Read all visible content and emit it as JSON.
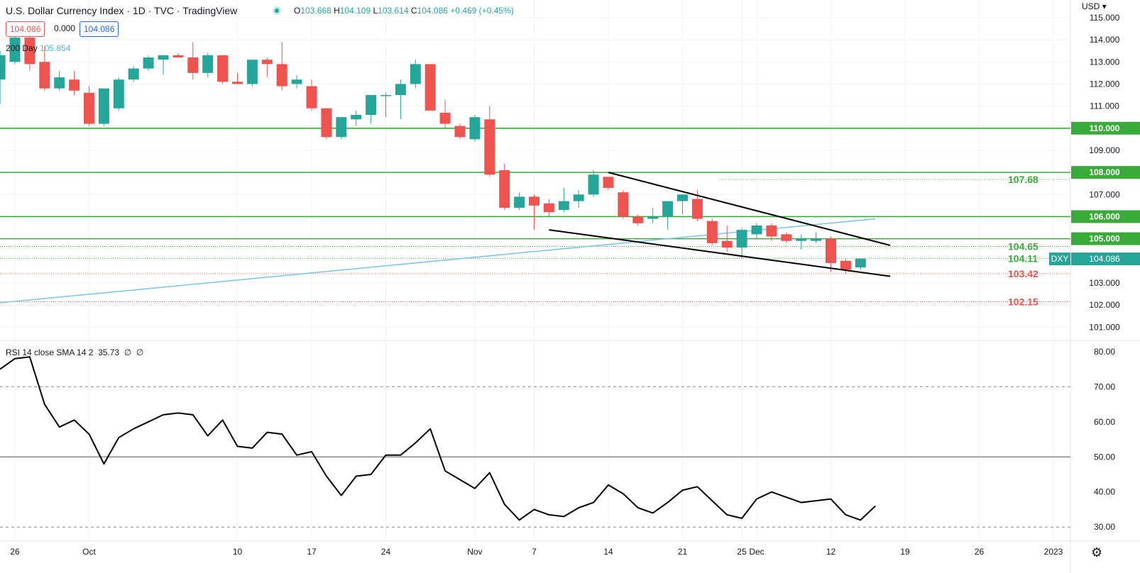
{
  "header": {
    "title": "U.S. Dollar Currency Index · 1D · TVC · TradingView",
    "ohlc": {
      "o_label": "O",
      "o": "103.668",
      "h_label": "H",
      "h": "104.109",
      "l_label": "L",
      "l": "103.614",
      "c_label": "C",
      "c": "104.086",
      "chg": "+0.469 (+0.45%)"
    },
    "sell_price": "104.086",
    "spread": "0.000",
    "buy_price": "104.086",
    "ma_label": "200 Day",
    "ma_value": "105.854",
    "currency": "USD",
    "settings_icon": "gear-icon"
  },
  "rsi_header": {
    "label": "RSI 14 close SMA 14 2",
    "value": "35.73",
    "extra1": "∅",
    "extra2": "∅"
  },
  "colors": {
    "up": "#26a69a",
    "down": "#ef5350",
    "level": "#3aab3a",
    "ma": "#7ec8e3",
    "trend": "#000000"
  },
  "chart_data": [
    {
      "type": "candlestick",
      "title": "U.S. Dollar Currency Index · 1D · TVC · TradingView",
      "price_range": [
        100.4,
        115.8
      ],
      "price_ticks": [
        "101.000",
        "102.000",
        "103.000",
        "104.000",
        "105.000",
        "106.000",
        "107.000",
        "108.000",
        "109.000",
        "110.000",
        "111.000",
        "112.000",
        "113.000",
        "114.000",
        "115.000"
      ],
      "x_ticks": [
        {
          "label": "26",
          "day": 0
        },
        {
          "label": "Oct",
          "day": 5
        },
        {
          "label": "10",
          "day": 15
        },
        {
          "label": "17",
          "day": 20
        },
        {
          "label": "24",
          "day": 25
        },
        {
          "label": "Nov",
          "day": 31
        },
        {
          "label": "7",
          "day": 35
        },
        {
          "label": "14",
          "day": 40
        },
        {
          "label": "21",
          "day": 45
        },
        {
          "label": "25",
          "day": 49
        },
        {
          "label": "Dec",
          "day": 50
        },
        {
          "label": "12",
          "day": 55
        },
        {
          "label": "19",
          "day": 60
        },
        {
          "label": "26",
          "day": 65
        },
        {
          "label": "2023",
          "day": 70
        }
      ],
      "candles": [
        {
          "o": 112.2,
          "h": 113.5,
          "l": 111.1,
          "c": 113.3
        },
        {
          "o": 113.0,
          "h": 114.5,
          "l": 112.9,
          "c": 114.1
        },
        {
          "o": 114.1,
          "h": 114.7,
          "l": 112.6,
          "c": 112.9
        },
        {
          "o": 113.0,
          "h": 113.7,
          "l": 111.7,
          "c": 111.8
        },
        {
          "o": 111.8,
          "h": 112.6,
          "l": 111.7,
          "c": 112.3
        },
        {
          "o": 112.2,
          "h": 112.6,
          "l": 111.5,
          "c": 111.7
        },
        {
          "o": 111.6,
          "h": 111.9,
          "l": 110.1,
          "c": 110.2
        },
        {
          "o": 110.2,
          "h": 111.8,
          "l": 110.1,
          "c": 111.8
        },
        {
          "o": 110.9,
          "h": 112.3,
          "l": 110.8,
          "c": 112.2
        },
        {
          "o": 112.2,
          "h": 112.8,
          "l": 112.1,
          "c": 112.7
        },
        {
          "o": 112.7,
          "h": 113.3,
          "l": 112.6,
          "c": 113.2
        },
        {
          "o": 113.1,
          "h": 113.3,
          "l": 112.4,
          "c": 113.3
        },
        {
          "o": 113.3,
          "h": 113.4,
          "l": 113.2,
          "c": 113.2
        },
        {
          "o": 113.2,
          "h": 113.9,
          "l": 112.2,
          "c": 112.5
        },
        {
          "o": 112.5,
          "h": 113.4,
          "l": 112.3,
          "c": 113.3
        },
        {
          "o": 113.3,
          "h": 113.3,
          "l": 112.0,
          "c": 112.1
        },
        {
          "o": 112.1,
          "h": 112.5,
          "l": 112.0,
          "c": 112.0
        },
        {
          "o": 112.0,
          "h": 113.0,
          "l": 111.9,
          "c": 113.1
        },
        {
          "o": 113.1,
          "h": 113.2,
          "l": 112.3,
          "c": 112.9
        },
        {
          "o": 112.9,
          "h": 113.9,
          "l": 111.7,
          "c": 111.9
        },
        {
          "o": 112.0,
          "h": 112.4,
          "l": 111.8,
          "c": 112.2
        },
        {
          "o": 111.9,
          "h": 112.2,
          "l": 110.8,
          "c": 110.9
        },
        {
          "o": 110.9,
          "h": 110.9,
          "l": 109.5,
          "c": 109.6
        },
        {
          "o": 109.6,
          "h": 110.5,
          "l": 109.5,
          "c": 110.5
        },
        {
          "o": 110.4,
          "h": 110.8,
          "l": 110.1,
          "c": 110.6
        },
        {
          "o": 110.6,
          "h": 111.5,
          "l": 110.2,
          "c": 111.5
        },
        {
          "o": 111.5,
          "h": 111.6,
          "l": 110.5,
          "c": 111.5
        },
        {
          "o": 111.5,
          "h": 112.2,
          "l": 110.4,
          "c": 112.0
        },
        {
          "o": 112.0,
          "h": 113.1,
          "l": 111.8,
          "c": 112.9
        },
        {
          "o": 112.9,
          "h": 112.9,
          "l": 110.8,
          "c": 110.8
        },
        {
          "o": 110.7,
          "h": 111.3,
          "l": 110.0,
          "c": 110.2
        },
        {
          "o": 110.1,
          "h": 110.2,
          "l": 109.5,
          "c": 109.6
        },
        {
          "o": 109.5,
          "h": 110.6,
          "l": 109.4,
          "c": 110.5
        },
        {
          "o": 110.4,
          "h": 111.0,
          "l": 107.8,
          "c": 107.9
        },
        {
          "o": 108.1,
          "h": 108.4,
          "l": 106.3,
          "c": 106.4
        },
        {
          "o": 106.4,
          "h": 107.1,
          "l": 106.3,
          "c": 106.9
        },
        {
          "o": 106.9,
          "h": 107.0,
          "l": 105.4,
          "c": 106.5
        },
        {
          "o": 106.6,
          "h": 106.8,
          "l": 106.0,
          "c": 106.2
        },
        {
          "o": 106.3,
          "h": 107.3,
          "l": 106.2,
          "c": 106.7
        },
        {
          "o": 106.7,
          "h": 107.2,
          "l": 106.4,
          "c": 107.0
        },
        {
          "o": 107.0,
          "h": 108.1,
          "l": 106.9,
          "c": 107.9
        },
        {
          "o": 107.8,
          "h": 107.8,
          "l": 107.2,
          "c": 107.3
        },
        {
          "o": 107.1,
          "h": 107.2,
          "l": 105.9,
          "c": 106.0
        },
        {
          "o": 106.0,
          "h": 106.1,
          "l": 105.6,
          "c": 105.7
        },
        {
          "o": 105.9,
          "h": 106.4,
          "l": 105.7,
          "c": 106.0
        },
        {
          "o": 106.0,
          "h": 106.7,
          "l": 105.4,
          "c": 106.7
        },
        {
          "o": 106.7,
          "h": 107.0,
          "l": 106.1,
          "c": 107.0
        },
        {
          "o": 106.8,
          "h": 107.2,
          "l": 105.8,
          "c": 105.9
        },
        {
          "o": 105.8,
          "h": 105.9,
          "l": 104.7,
          "c": 104.8
        },
        {
          "o": 104.9,
          "h": 105.6,
          "l": 104.4,
          "c": 104.6
        },
        {
          "o": 104.6,
          "h": 105.5,
          "l": 104.1,
          "c": 105.4
        },
        {
          "o": 105.2,
          "h": 105.7,
          "l": 105.0,
          "c": 105.6
        },
        {
          "o": 105.6,
          "h": 105.7,
          "l": 104.9,
          "c": 105.1
        },
        {
          "o": 105.2,
          "h": 105.3,
          "l": 104.8,
          "c": 104.9
        },
        {
          "o": 104.9,
          "h": 105.2,
          "l": 104.5,
          "c": 105.0
        },
        {
          "o": 104.9,
          "h": 105.3,
          "l": 104.8,
          "c": 105.0
        },
        {
          "o": 105.0,
          "h": 105.1,
          "l": 103.5,
          "c": 103.9
        },
        {
          "o": 104.0,
          "h": 104.1,
          "l": 103.4,
          "c": 103.6
        },
        {
          "o": 103.7,
          "h": 104.1,
          "l": 103.6,
          "c": 104.1
        }
      ],
      "candle_days": [
        0,
        1,
        2,
        3,
        4,
        5,
        6,
        7,
        8,
        9,
        10,
        11,
        12,
        13,
        14,
        15,
        16,
        17,
        18,
        19,
        20,
        21,
        22,
        23,
        24,
        25,
        26,
        27,
        28,
        29,
        30,
        31,
        32,
        33,
        34,
        35,
        36,
        37,
        38,
        39,
        40,
        41,
        42,
        43,
        44,
        45,
        46,
        47,
        48,
        49,
        50,
        51,
        52,
        53,
        54,
        55,
        56,
        57,
        58
      ],
      "first_candle_day": -1,
      "levels": [
        {
          "price": 110.0,
          "label": "110.000",
          "kind": "line"
        },
        {
          "price": 108.0,
          "label": "108.000",
          "kind": "line"
        },
        {
          "price": 106.0,
          "label": "106.000",
          "kind": "line"
        },
        {
          "price": 105.0,
          "label": "105.000",
          "kind": "line"
        }
      ],
      "dotted_levels": [
        {
          "price": 107.68,
          "label": "107.68",
          "color": "#3aab3a"
        },
        {
          "price": 104.65,
          "label": "104.65",
          "color": "#3aab3a"
        },
        {
          "price": 104.11,
          "label": "104.11",
          "color": "#3aab3a"
        },
        {
          "price": 103.42,
          "label": "103.42",
          "color": "#ef5350"
        },
        {
          "price": 102.15,
          "label": "102.15",
          "color": "#ef5350"
        }
      ],
      "last_price": {
        "symbol": "DXY",
        "label": "104.086",
        "price": 104.086
      },
      "ma_200": {
        "name": "200 Day",
        "points": [
          {
            "day": -1,
            "price": 102.1
          },
          {
            "day": 58,
            "price": 105.9
          }
        ]
      },
      "trendlines": [
        {
          "from": {
            "day": 40,
            "price": 108.0
          },
          "to": {
            "day": 59,
            "price": 104.7
          }
        },
        {
          "from": {
            "day": 36,
            "price": 105.4
          },
          "to": {
            "day": 59,
            "price": 103.3
          }
        }
      ]
    },
    {
      "type": "line",
      "title": "RSI 14 close SMA 14 2",
      "value_label": "35.73",
      "y_range": [
        26,
        83
      ],
      "y_ticks": [
        "30.00",
        "40.00",
        "50.00",
        "60.00",
        "70.00",
        "80.00"
      ],
      "levels": [
        70,
        50,
        30
      ],
      "x_days": [
        -1,
        0,
        1,
        2,
        3,
        4,
        5,
        6,
        7,
        8,
        9,
        10,
        11,
        12,
        13,
        14,
        15,
        16,
        17,
        18,
        19,
        20,
        21,
        22,
        23,
        24,
        25,
        26,
        27,
        28,
        29,
        30,
        31,
        32,
        33,
        34,
        35,
        36,
        37,
        38,
        39,
        40,
        41,
        42,
        43,
        44,
        45,
        46,
        47,
        48,
        49,
        50,
        51,
        52,
        53,
        54,
        55,
        56,
        57,
        58
      ],
      "values": [
        75,
        78,
        78.5,
        65,
        58.5,
        60.5,
        56.5,
        48,
        55.5,
        58,
        60,
        62,
        62.5,
        62,
        56,
        60.5,
        53,
        52.5,
        57,
        56.5,
        50.5,
        51.5,
        44.5,
        39,
        44.5,
        45,
        50.5,
        50.5,
        54,
        58,
        46,
        43.5,
        41,
        45.5,
        36.5,
        32,
        35,
        33.5,
        33,
        35.5,
        37,
        42,
        39.5,
        35.5,
        34,
        37,
        40.5,
        41.5,
        37.5,
        33.5,
        32.5,
        38,
        40,
        38.5,
        37,
        37.5,
        38,
        33.5,
        32,
        36
      ]
    }
  ]
}
